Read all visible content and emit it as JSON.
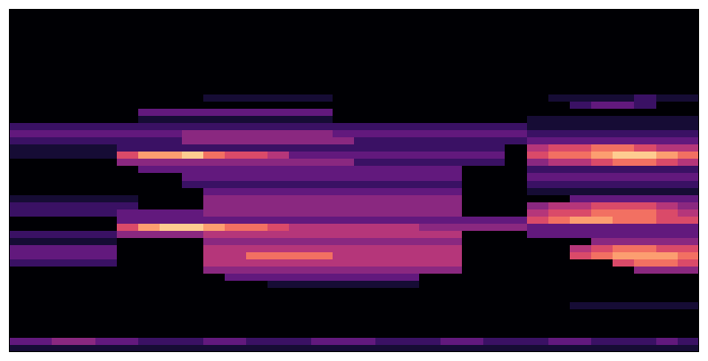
{
  "chart_data": {
    "type": "heatmap",
    "tick_labels": false,
    "color": "magma",
    "zlim": [
      0,
      10
    ],
    "cells": [
      [
        0,
        0,
        0,
        0,
        0,
        0,
        0,
        0,
        0,
        0,
        0,
        0,
        0,
        0,
        0,
        0,
        0,
        0,
        0,
        0,
        0,
        0,
        0,
        0,
        0,
        0,
        0,
        0,
        0,
        0,
        0,
        0
      ],
      [
        0,
        0,
        0,
        0,
        0,
        0,
        0,
        0,
        0,
        0,
        0,
        0,
        0,
        0,
        0,
        0,
        0,
        0,
        0,
        0,
        0,
        0,
        0,
        0,
        0,
        0,
        0,
        0,
        0,
        0,
        0,
        0
      ],
      [
        0,
        0,
        0,
        0,
        0,
        0,
        0,
        0,
        0,
        0,
        0,
        0,
        0,
        0,
        0,
        0,
        0,
        0,
        0,
        0,
        0,
        0,
        0,
        0,
        0,
        0,
        0,
        0,
        0,
        0,
        0,
        0
      ],
      [
        0,
        0,
        0,
        0,
        0,
        0,
        0,
        0,
        0,
        0,
        0,
        0,
        0,
        0,
        0,
        0,
        0,
        0,
        0,
        0,
        0,
        0,
        0,
        0,
        0,
        0,
        0,
        0,
        0,
        0,
        0,
        0
      ],
      [
        0,
        0,
        0,
        0,
        0,
        0,
        0,
        0,
        0,
        0,
        0,
        0,
        0,
        0,
        0,
        0,
        0,
        0,
        0,
        0,
        0,
        0,
        0,
        0,
        0,
        0,
        0,
        0,
        0,
        0,
        0,
        0
      ],
      [
        0,
        0,
        0,
        0,
        0,
        0,
        0,
        0,
        0,
        0,
        0,
        0,
        0,
        0,
        0,
        0,
        0,
        0,
        0,
        0,
        0,
        0,
        0,
        0,
        0,
        0,
        0,
        0,
        0,
        0,
        0,
        0
      ],
      [
        0,
        0,
        0,
        0,
        0,
        0,
        0,
        0,
        0,
        0,
        0,
        0,
        0,
        0,
        0,
        0,
        0,
        0,
        0,
        0,
        0,
        0,
        0,
        0,
        0,
        0,
        0,
        0,
        0,
        0,
        0,
        0
      ],
      [
        0,
        0,
        0,
        0,
        0,
        0,
        0,
        0,
        0,
        0,
        0,
        0,
        0,
        0,
        0,
        0,
        0,
        0,
        0,
        0,
        0,
        0,
        0,
        0,
        0,
        0,
        0,
        0,
        0,
        0,
        0,
        0
      ],
      [
        0,
        0,
        0,
        0,
        0,
        0,
        0,
        0,
        0,
        0,
        0,
        0,
        0,
        0,
        0,
        0,
        0,
        0,
        0,
        0,
        0,
        0,
        0,
        0,
        0,
        0,
        0,
        0,
        0,
        0,
        0,
        0
      ],
      [
        0,
        0,
        0,
        0,
        0,
        0,
        0,
        0,
        0,
        0,
        0,
        0,
        0,
        0,
        0,
        0,
        0,
        0,
        0,
        0,
        0,
        0,
        0,
        0,
        0,
        0,
        0,
        0,
        0,
        0,
        0,
        0
      ],
      [
        0,
        0,
        0,
        0,
        0,
        0,
        0,
        0,
        0,
        0,
        0,
        0,
        0,
        0,
        0,
        0,
        0,
        0,
        0,
        0,
        0,
        0,
        0,
        0,
        0,
        0,
        0,
        0,
        0,
        0,
        0,
        0
      ],
      [
        0,
        0,
        0,
        0,
        0,
        0,
        0,
        0,
        0,
        0,
        0,
        0,
        0,
        0,
        0,
        0,
        0,
        0,
        0,
        0,
        0,
        0,
        0,
        0,
        0,
        0,
        0,
        0,
        0,
        0,
        0,
        0
      ],
      [
        0,
        0,
        0,
        0,
        0,
        0,
        0,
        0,
        0,
        1,
        1,
        1,
        1,
        1,
        1,
        0,
        0,
        0,
        0,
        0,
        0,
        0,
        0,
        0,
        0,
        1,
        1,
        1,
        1,
        2,
        1,
        1
      ],
      [
        0,
        0,
        0,
        0,
        0,
        0,
        0,
        0,
        0,
        0,
        0,
        0,
        0,
        0,
        0,
        0,
        0,
        0,
        0,
        0,
        0,
        0,
        0,
        0,
        0,
        0,
        2,
        3,
        3,
        2,
        0,
        0
      ],
      [
        0,
        0,
        0,
        0,
        0,
        0,
        3,
        3,
        3,
        3,
        3,
        3,
        3,
        3,
        3,
        0,
        0,
        0,
        0,
        0,
        0,
        0,
        0,
        0,
        0,
        0,
        0,
        0,
        0,
        0,
        0,
        0
      ],
      [
        0,
        0,
        0,
        0,
        0,
        0,
        1,
        1,
        1,
        1,
        1,
        1,
        1,
        1,
        1,
        0,
        0,
        0,
        0,
        0,
        0,
        0,
        0,
        0,
        1,
        1,
        1,
        1,
        1,
        1,
        1,
        1
      ],
      [
        2,
        2,
        2,
        2,
        2,
        2,
        2,
        2,
        2,
        2,
        2,
        2,
        2,
        2,
        2,
        2,
        2,
        2,
        2,
        2,
        2,
        2,
        2,
        2,
        1,
        1,
        1,
        1,
        1,
        1,
        1,
        1
      ],
      [
        3,
        3,
        3,
        3,
        3,
        3,
        3,
        3,
        4,
        4,
        4,
        4,
        4,
        4,
        4,
        3,
        3,
        3,
        3,
        3,
        3,
        3,
        3,
        3,
        2,
        2,
        2,
        2,
        2,
        2,
        2,
        2
      ],
      [
        2,
        2,
        2,
        2,
        2,
        2,
        2,
        2,
        4,
        4,
        4,
        4,
        4,
        4,
        4,
        4,
        2,
        2,
        2,
        2,
        2,
        2,
        2,
        2,
        3,
        3,
        3,
        3,
        3,
        3,
        3,
        3
      ],
      [
        1,
        1,
        1,
        1,
        1,
        2,
        2,
        2,
        2,
        2,
        2,
        2,
        2,
        2,
        2,
        2,
        2,
        2,
        2,
        2,
        2,
        2,
        2,
        0,
        5,
        6,
        6,
        7,
        7,
        6,
        5,
        5
      ],
      [
        1,
        1,
        1,
        1,
        1,
        6,
        8,
        8,
        9,
        7,
        6,
        6,
        5,
        3,
        3,
        3,
        3,
        3,
        3,
        3,
        3,
        3,
        3,
        0,
        6,
        7,
        7,
        8,
        9,
        9,
        8,
        7
      ],
      [
        0,
        0,
        0,
        0,
        0,
        4,
        4,
        4,
        4,
        4,
        4,
        4,
        4,
        4,
        4,
        4,
        2,
        2,
        2,
        2,
        2,
        2,
        2,
        0,
        4,
        5,
        5,
        6,
        7,
        7,
        6,
        5
      ],
      [
        0,
        0,
        0,
        0,
        0,
        0,
        3,
        3,
        3,
        3,
        3,
        3,
        3,
        3,
        3,
        3,
        3,
        3,
        3,
        3,
        3,
        0,
        0,
        0,
        2,
        2,
        2,
        2,
        2,
        2,
        2,
        2
      ],
      [
        0,
        0,
        0,
        0,
        0,
        0,
        0,
        0,
        3,
        3,
        3,
        3,
        3,
        3,
        3,
        3,
        3,
        3,
        3,
        3,
        3,
        0,
        0,
        0,
        3,
        3,
        3,
        3,
        3,
        3,
        3,
        3
      ],
      [
        0,
        0,
        0,
        0,
        0,
        0,
        0,
        0,
        2,
        2,
        2,
        2,
        2,
        2,
        2,
        2,
        2,
        2,
        2,
        2,
        2,
        0,
        0,
        0,
        2,
        2,
        2,
        2,
        2,
        2,
        2,
        2
      ],
      [
        0,
        0,
        0,
        0,
        0,
        0,
        0,
        0,
        0,
        3,
        3,
        3,
        3,
        3,
        3,
        3,
        3,
        3,
        3,
        3,
        3,
        0,
        0,
        0,
        1,
        1,
        1,
        1,
        1,
        1,
        1,
        1
      ],
      [
        1,
        1,
        1,
        1,
        1,
        1,
        0,
        0,
        0,
        4,
        4,
        4,
        4,
        4,
        4,
        4,
        4,
        4,
        4,
        4,
        4,
        0,
        0,
        0,
        0,
        0,
        3,
        3,
        3,
        3,
        3,
        3
      ],
      [
        2,
        2,
        2,
        2,
        2,
        2,
        0,
        0,
        0,
        4,
        4,
        4,
        4,
        4,
        4,
        4,
        4,
        4,
        4,
        4,
        4,
        0,
        0,
        0,
        4,
        5,
        5,
        6,
        6,
        6,
        5,
        4
      ],
      [
        2,
        2,
        2,
        2,
        2,
        3,
        3,
        3,
        3,
        4,
        4,
        4,
        4,
        4,
        4,
        4,
        4,
        4,
        4,
        4,
        4,
        0,
        0,
        0,
        5,
        6,
        6,
        7,
        7,
        7,
        6,
        5
      ],
      [
        0,
        0,
        0,
        0,
        0,
        3,
        3,
        3,
        3,
        3,
        3,
        3,
        3,
        3,
        3,
        3,
        3,
        3,
        3,
        3,
        3,
        3,
        3,
        3,
        6,
        7,
        8,
        8,
        7,
        7,
        6,
        6
      ],
      [
        0,
        0,
        0,
        0,
        0,
        6,
        8,
        9,
        9,
        8,
        7,
        7,
        6,
        5,
        5,
        5,
        5,
        5,
        5,
        4,
        4,
        4,
        4,
        4,
        3,
        3,
        3,
        3,
        3,
        3,
        3,
        3
      ],
      [
        2,
        2,
        2,
        2,
        2,
        4,
        4,
        4,
        4,
        5,
        5,
        5,
        5,
        5,
        5,
        5,
        5,
        5,
        5,
        5,
        5,
        0,
        0,
        0,
        3,
        3,
        3,
        3,
        3,
        3,
        3,
        3
      ],
      [
        1,
        1,
        1,
        1,
        1,
        0,
        0,
        0,
        0,
        4,
        4,
        4,
        4,
        4,
        4,
        4,
        4,
        4,
        4,
        4,
        4,
        0,
        0,
        0,
        0,
        0,
        0,
        4,
        4,
        4,
        4,
        4
      ],
      [
        3,
        3,
        3,
        3,
        3,
        0,
        0,
        0,
        0,
        5,
        5,
        5,
        5,
        5,
        5,
        5,
        5,
        5,
        5,
        5,
        5,
        0,
        0,
        0,
        0,
        0,
        5,
        6,
        7,
        7,
        6,
        6
      ],
      [
        3,
        3,
        3,
        3,
        3,
        0,
        0,
        0,
        0,
        5,
        5,
        7,
        7,
        7,
        7,
        5,
        5,
        5,
        5,
        5,
        5,
        0,
        0,
        0,
        0,
        0,
        6,
        7,
        8,
        8,
        8,
        7
      ],
      [
        2,
        2,
        2,
        2,
        2,
        0,
        0,
        0,
        0,
        5,
        5,
        5,
        5,
        5,
        5,
        5,
        5,
        5,
        5,
        5,
        5,
        0,
        0,
        0,
        0,
        0,
        0,
        0,
        6,
        7,
        7,
        6
      ],
      [
        0,
        0,
        0,
        0,
        0,
        0,
        0,
        0,
        0,
        4,
        4,
        4,
        4,
        4,
        4,
        4,
        4,
        4,
        4,
        4,
        4,
        0,
        0,
        0,
        0,
        0,
        0,
        0,
        0,
        4,
        4,
        4
      ],
      [
        0,
        0,
        0,
        0,
        0,
        0,
        0,
        0,
        0,
        0,
        3,
        3,
        3,
        3,
        3,
        3,
        3,
        3,
        3,
        0,
        0,
        0,
        0,
        0,
        0,
        0,
        0,
        0,
        0,
        0,
        0,
        0
      ],
      [
        0,
        0,
        0,
        0,
        0,
        0,
        0,
        0,
        0,
        0,
        0,
        0,
        1,
        1,
        1,
        1,
        1,
        1,
        1,
        0,
        0,
        0,
        0,
        0,
        0,
        0,
        0,
        0,
        0,
        0,
        0,
        0
      ],
      [
        0,
        0,
        0,
        0,
        0,
        0,
        0,
        0,
        0,
        0,
        0,
        0,
        0,
        0,
        0,
        0,
        0,
        0,
        0,
        0,
        0,
        0,
        0,
        0,
        0,
        0,
        0,
        0,
        0,
        0,
        0,
        0
      ],
      [
        0,
        0,
        0,
        0,
        0,
        0,
        0,
        0,
        0,
        0,
        0,
        0,
        0,
        0,
        0,
        0,
        0,
        0,
        0,
        0,
        0,
        0,
        0,
        0,
        0,
        0,
        0,
        0,
        0,
        0,
        0,
        0
      ],
      [
        0,
        0,
        0,
        0,
        0,
        0,
        0,
        0,
        0,
        0,
        0,
        0,
        0,
        0,
        0,
        0,
        0,
        0,
        0,
        0,
        0,
        0,
        0,
        0,
        0,
        0,
        1,
        1,
        1,
        1,
        1,
        1
      ],
      [
        0,
        0,
        0,
        0,
        0,
        0,
        0,
        0,
        0,
        0,
        0,
        0,
        0,
        0,
        0,
        0,
        0,
        0,
        0,
        0,
        0,
        0,
        0,
        0,
        0,
        0,
        0,
        0,
        0,
        0,
        0,
        0
      ],
      [
        0,
        0,
        0,
        0,
        0,
        0,
        0,
        0,
        0,
        0,
        0,
        0,
        0,
        0,
        0,
        0,
        0,
        0,
        0,
        0,
        0,
        0,
        0,
        0,
        0,
        0,
        0,
        0,
        0,
        0,
        0,
        0
      ],
      [
        0,
        0,
        0,
        0,
        0,
        0,
        0,
        0,
        0,
        0,
        0,
        0,
        0,
        0,
        0,
        0,
        0,
        0,
        0,
        0,
        0,
        0,
        0,
        0,
        0,
        0,
        0,
        0,
        0,
        0,
        0,
        0
      ],
      [
        0,
        0,
        0,
        0,
        0,
        0,
        0,
        0,
        0,
        0,
        0,
        0,
        0,
        0,
        0,
        0,
        0,
        0,
        0,
        0,
        0,
        0,
        0,
        0,
        0,
        0,
        0,
        0,
        0,
        0,
        0,
        0
      ],
      [
        3,
        3,
        4,
        4,
        3,
        3,
        2,
        2,
        2,
        3,
        3,
        2,
        2,
        2,
        3,
        3,
        3,
        2,
        2,
        2,
        3,
        3,
        2,
        2,
        2,
        3,
        3,
        2,
        2,
        2,
        3,
        2
      ],
      [
        1,
        1,
        1,
        1,
        1,
        1,
        1,
        1,
        1,
        1,
        1,
        1,
        1,
        1,
        1,
        1,
        1,
        1,
        1,
        1,
        1,
        1,
        1,
        1,
        1,
        1,
        1,
        1,
        1,
        1,
        1,
        1
      ]
    ]
  }
}
